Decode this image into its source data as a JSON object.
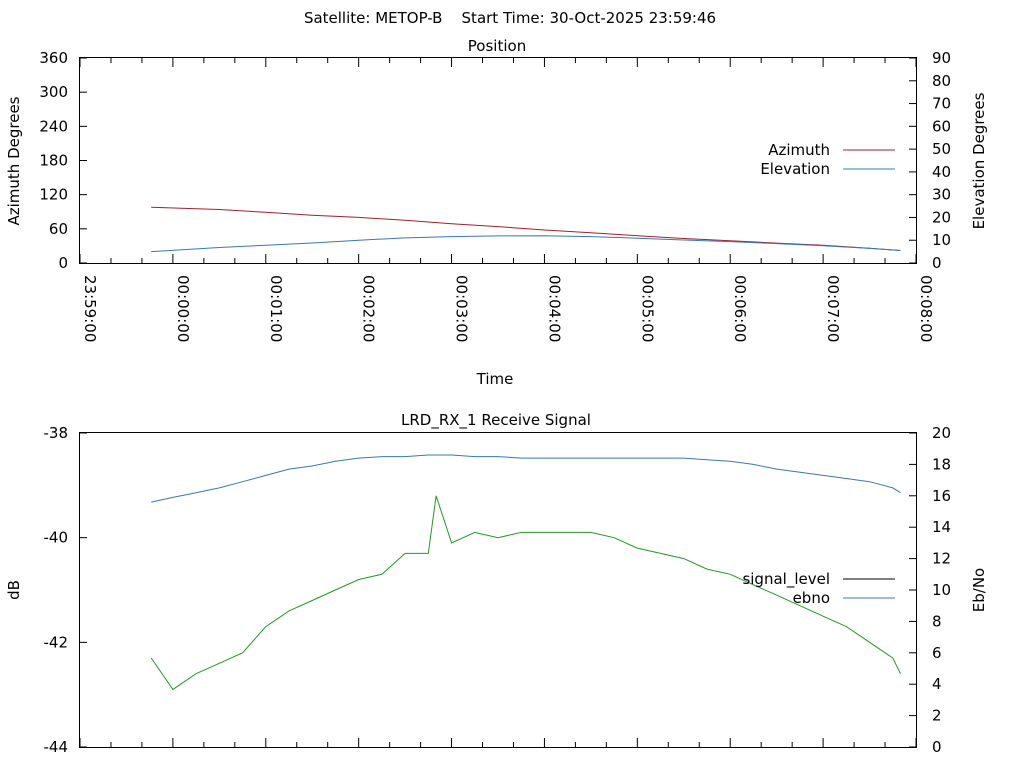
{
  "page_title": "Satellite: METOP-B    Start Time: 30-Oct-2025 23:59:46",
  "chart_data": [
    {
      "type": "line",
      "title": "Position",
      "xlabel": "Time",
      "ylabel": "Azimuth Degrees",
      "y2label": "Elevation Degrees",
      "xlim": [
        "23:59:00",
        "00:08:00"
      ],
      "ylim": [
        0,
        360
      ],
      "y2lim": [
        0,
        90
      ],
      "x_ticks": [
        "23:59:00",
        "00:00:00",
        "00:01:00",
        "00:02:00",
        "00:03:00",
        "00:04:00",
        "00:05:00",
        "00:06:00",
        "00:07:00",
        "00:08:00"
      ],
      "y_ticks": [
        "0",
        "60",
        "120",
        "180",
        "240",
        "300",
        "360"
      ],
      "y2_ticks": [
        "0",
        "10",
        "20",
        "30",
        "40",
        "50",
        "60",
        "70",
        "80",
        "90"
      ],
      "legend_position": "right",
      "series": [
        {
          "name": "Azimuth",
          "axis": "left",
          "color": "#a0202a",
          "x": [
            "23:59:46",
            "00:00:30",
            "00:01:00",
            "00:01:30",
            "00:02:00",
            "00:02:30",
            "00:03:00",
            "00:03:30",
            "00:04:00",
            "00:04:30",
            "00:05:00",
            "00:05:30",
            "00:06:00",
            "00:06:30",
            "00:07:00",
            "00:07:30",
            "00:07:50"
          ],
          "values": [
            98,
            94,
            89,
            84,
            80,
            75,
            69,
            64,
            58,
            53,
            48,
            43,
            39,
            35,
            31,
            26,
            22
          ]
        },
        {
          "name": "Elevation",
          "axis": "right",
          "color": "#3a78b0",
          "x": [
            "23:59:46",
            "00:00:30",
            "00:01:00",
            "00:01:30",
            "00:02:00",
            "00:02:30",
            "00:03:00",
            "00:03:30",
            "00:04:00",
            "00:04:30",
            "00:05:00",
            "00:05:30",
            "00:06:00",
            "00:06:30",
            "00:07:00",
            "00:07:30",
            "00:07:50"
          ],
          "values": [
            5,
            6.8,
            7.8,
            8.8,
            10,
            11,
            11.6,
            11.9,
            12,
            11.6,
            10.9,
            10.1,
            9.4,
            8.5,
            7.6,
            6.4,
            5.5
          ]
        }
      ]
    },
    {
      "type": "line",
      "title": "LRD_RX_1 Receive Signal",
      "xlabel": "",
      "ylabel": "dB",
      "y2label": "Eb/No",
      "ylim": [
        -44,
        -38
      ],
      "y2lim": [
        0,
        20
      ],
      "y_ticks": [
        "-38",
        "-40",
        "-42",
        "-44"
      ],
      "y2_ticks": [
        "0",
        "2",
        "4",
        "6",
        "8",
        "10",
        "12",
        "14",
        "16",
        "18",
        "20"
      ],
      "legend_position": "right",
      "series": [
        {
          "name": "signal_level",
          "axis": "left",
          "color": "#1f9a1f",
          "legend_color": "#000000",
          "x": [
            "23:59:46",
            "00:00:00",
            "00:00:15",
            "00:00:30",
            "00:00:45",
            "00:01:00",
            "00:01:15",
            "00:01:30",
            "00:01:45",
            "00:02:00",
            "00:02:15",
            "00:02:30",
            "00:02:45",
            "00:02:50",
            "00:03:00",
            "00:03:15",
            "00:03:30",
            "00:03:45",
            "00:04:00",
            "00:04:15",
            "00:04:30",
            "00:04:45",
            "00:05:00",
            "00:05:15",
            "00:05:30",
            "00:05:45",
            "00:06:00",
            "00:06:15",
            "00:06:30",
            "00:06:45",
            "00:07:00",
            "00:07:15",
            "00:07:30",
            "00:07:45",
            "00:07:50"
          ],
          "values": [
            -42.3,
            -42.9,
            -42.6,
            -42.4,
            -42.2,
            -41.7,
            -41.4,
            -41.2,
            -41.0,
            -40.8,
            -40.7,
            -40.3,
            -40.3,
            -39.2,
            -40.1,
            -39.9,
            -40.0,
            -39.9,
            -39.9,
            -39.9,
            -39.9,
            -40.0,
            -40.2,
            -40.3,
            -40.4,
            -40.6,
            -40.7,
            -40.9,
            -41.1,
            -41.3,
            -41.5,
            -41.7,
            -42.0,
            -42.3,
            -42.6
          ]
        },
        {
          "name": "ebno",
          "axis": "right",
          "color": "#3a78b0",
          "x": [
            "23:59:46",
            "00:00:00",
            "00:00:15",
            "00:00:30",
            "00:00:45",
            "00:01:00",
            "00:01:15",
            "00:01:30",
            "00:01:45",
            "00:02:00",
            "00:02:15",
            "00:02:30",
            "00:02:45",
            "00:03:00",
            "00:03:15",
            "00:03:30",
            "00:03:45",
            "00:04:00",
            "00:04:15",
            "00:04:30",
            "00:04:45",
            "00:05:00",
            "00:05:15",
            "00:05:30",
            "00:05:45",
            "00:06:00",
            "00:06:15",
            "00:06:30",
            "00:06:45",
            "00:07:00",
            "00:07:15",
            "00:07:30",
            "00:07:45",
            "00:07:50"
          ],
          "values": [
            15.6,
            15.9,
            16.2,
            16.5,
            16.9,
            17.3,
            17.7,
            17.9,
            18.2,
            18.4,
            18.5,
            18.5,
            18.6,
            18.6,
            18.5,
            18.5,
            18.4,
            18.4,
            18.4,
            18.4,
            18.4,
            18.4,
            18.4,
            18.4,
            18.3,
            18.2,
            18.0,
            17.7,
            17.5,
            17.3,
            17.1,
            16.9,
            16.5,
            16.2
          ]
        }
      ]
    }
  ]
}
